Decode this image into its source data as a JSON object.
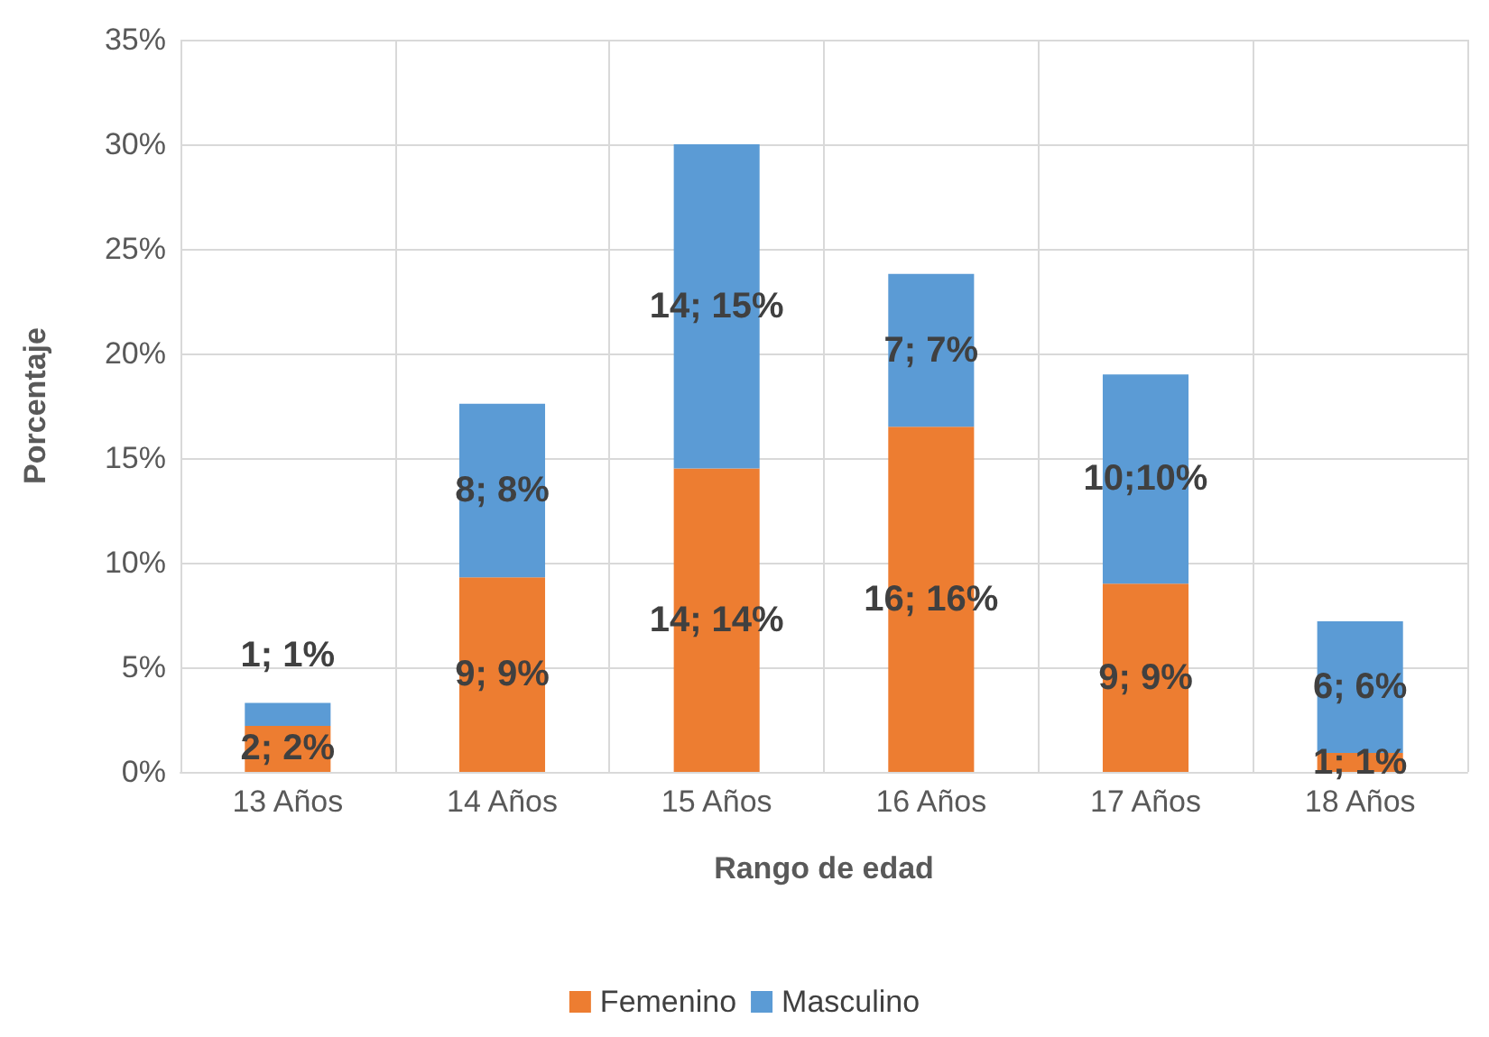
{
  "chart_data": {
    "type": "bar",
    "stacked": true,
    "xlabel": "Rango de edad",
    "ylabel": "Porcentaje",
    "categories": [
      "13 Años",
      "14 Años",
      "15 Años",
      "16 Años",
      "17 Años",
      "18 Años"
    ],
    "series": [
      {
        "name": "Femenino",
        "color": "#ed7d31",
        "values": [
          2.2,
          9.3,
          14.5,
          16.5,
          9.0,
          0.9
        ],
        "value_labels": [
          "2; 2%",
          "9; 9%",
          "14; 14%",
          "16; 16%",
          "9; 9%",
          "1; 1%"
        ]
      },
      {
        "name": "Masculino",
        "color": "#5b9bd5",
        "values": [
          1.1,
          8.3,
          15.5,
          7.3,
          10.0,
          6.3
        ],
        "value_labels": [
          "1; 1%",
          "8; 8%",
          "14; 15%",
          "7; 7%",
          "10;10%",
          "6; 6%"
        ]
      }
    ],
    "ylim": [
      0,
      35
    ],
    "yticks": [
      {
        "value": 0,
        "label": "0%"
      },
      {
        "value": 5,
        "label": "5%"
      },
      {
        "value": 10,
        "label": "10%"
      },
      {
        "value": 15,
        "label": "15%"
      },
      {
        "value": 20,
        "label": "20%"
      },
      {
        "value": 25,
        "label": "25%"
      },
      {
        "value": 30,
        "label": "30%"
      },
      {
        "value": 35,
        "label": "35%"
      }
    ],
    "grid": true,
    "legend": "bottom"
  }
}
